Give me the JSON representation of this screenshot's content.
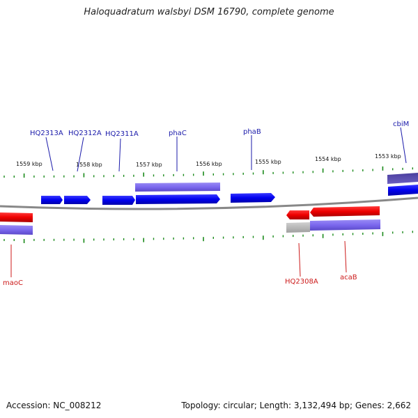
{
  "title": "Haloquadratum walsbyi DSM 16790, complete genome",
  "footer": {
    "accession": "Accession: NC_008212",
    "summary": "Topology: circular; Length: 3,132,494 bp; Genes: 2,662"
  },
  "colors": {
    "forward_gene": "#0a0aee",
    "reverse_gene": "#ee0a0a",
    "cds_overlay": "#7b68ee",
    "backbone": "#888888",
    "tick": "#1a8a1a",
    "forward_label": "#1a1aaa",
    "reverse_label": "#cc1a1a"
  },
  "scale_ticks": [
    {
      "label": "1559 kbp"
    },
    {
      "label": "1558 kbp"
    },
    {
      "label": "1557 kbp"
    },
    {
      "label": "1556 kbp"
    },
    {
      "label": "1555 kbp"
    },
    {
      "label": "1554 kbp"
    },
    {
      "label": "1553 kbp"
    }
  ],
  "forward_genes": [
    {
      "name": "HQ2313A"
    },
    {
      "name": "HQ2312A"
    },
    {
      "name": "HQ2311A"
    },
    {
      "name": "phaC"
    },
    {
      "name": "phaB"
    },
    {
      "name": "cbiM"
    }
  ],
  "reverse_genes": [
    {
      "name": "maoC"
    },
    {
      "name": "HQ2308A"
    },
    {
      "name": "acaB"
    }
  ]
}
